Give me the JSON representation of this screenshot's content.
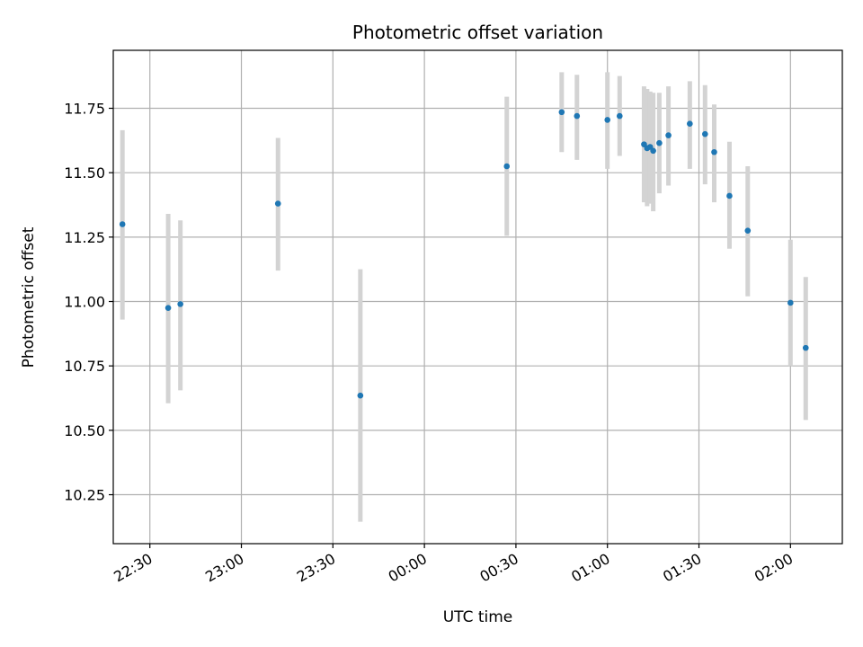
{
  "chart_data": {
    "type": "scatter",
    "title": "Photometric offset variation",
    "xlabel": "UTC time",
    "ylabel": "Photometric offset",
    "grid": true,
    "x_unit": "UTC time (hh:mm, crossing midnight)",
    "xlim": [
      "22:18",
      "02:17"
    ],
    "ylim": [
      10.06,
      11.975
    ],
    "x_ticks": [
      "22:30",
      "23:00",
      "23:30",
      "00:00",
      "00:30",
      "01:00",
      "01:30",
      "02:00"
    ],
    "y_ticks": [
      "10.25",
      "10.50",
      "10.75",
      "11.00",
      "11.25",
      "11.50",
      "11.75"
    ],
    "colors": {
      "point": "#1f77b4",
      "errorbar": "#d3d3d3",
      "grid": "#b0b0b0"
    },
    "series": [
      {
        "points": [
          {
            "x": "22:21",
            "y": 11.3,
            "ylo": 10.93,
            "yhi": 11.665
          },
          {
            "x": "22:36",
            "y": 10.975,
            "ylo": 10.605,
            "yhi": 11.34
          },
          {
            "x": "22:40",
            "y": 10.99,
            "ylo": 10.655,
            "yhi": 11.315
          },
          {
            "x": "23:12",
            "y": 11.38,
            "ylo": 11.12,
            "yhi": 11.635
          },
          {
            "x": "23:39",
            "y": 10.635,
            "ylo": 10.145,
            "yhi": 11.125
          },
          {
            "x": "00:27",
            "y": 11.525,
            "ylo": 11.255,
            "yhi": 11.795
          },
          {
            "x": "00:45",
            "y": 11.735,
            "ylo": 11.58,
            "yhi": 11.89
          },
          {
            "x": "00:50",
            "y": 11.72,
            "ylo": 11.55,
            "yhi": 11.88
          },
          {
            "x": "01:00",
            "y": 11.705,
            "ylo": 11.515,
            "yhi": 11.89
          },
          {
            "x": "01:04",
            "y": 11.72,
            "ylo": 11.565,
            "yhi": 11.875
          },
          {
            "x": "01:12",
            "y": 11.61,
            "ylo": 11.385,
            "yhi": 11.835
          },
          {
            "x": "01:13",
            "y": 11.595,
            "ylo": 11.37,
            "yhi": 11.825
          },
          {
            "x": "01:14",
            "y": 11.6,
            "ylo": 11.38,
            "yhi": 11.815
          },
          {
            "x": "01:15",
            "y": 11.585,
            "ylo": 11.35,
            "yhi": 11.81
          },
          {
            "x": "01:17",
            "y": 11.615,
            "ylo": 11.42,
            "yhi": 11.81
          },
          {
            "x": "01:20",
            "y": 11.645,
            "ylo": 11.45,
            "yhi": 11.835
          },
          {
            "x": "01:27",
            "y": 11.69,
            "ylo": 11.515,
            "yhi": 11.855
          },
          {
            "x": "01:32",
            "y": 11.65,
            "ylo": 11.455,
            "yhi": 11.84
          },
          {
            "x": "01:35",
            "y": 11.58,
            "ylo": 11.385,
            "yhi": 11.765
          },
          {
            "x": "01:40",
            "y": 11.41,
            "ylo": 11.205,
            "yhi": 11.62
          },
          {
            "x": "01:46",
            "y": 11.275,
            "ylo": 11.02,
            "yhi": 11.525
          },
          {
            "x": "02:00",
            "y": 10.995,
            "ylo": 10.75,
            "yhi": 11.24
          },
          {
            "x": "02:05",
            "y": 10.82,
            "ylo": 10.54,
            "yhi": 11.095
          }
        ]
      }
    ]
  }
}
